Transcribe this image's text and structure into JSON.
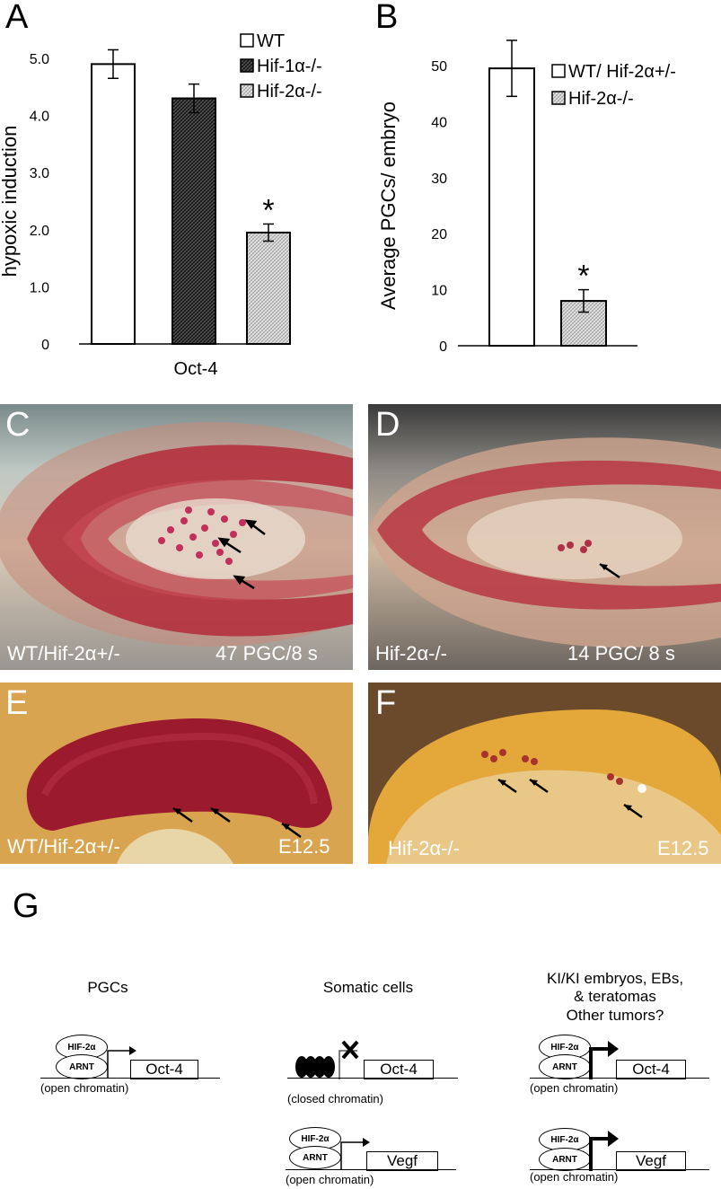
{
  "panels": {
    "A": "A",
    "B": "B",
    "C": "C",
    "D": "D",
    "E": "E",
    "F": "F",
    "G": "G"
  },
  "chart_data": [
    {
      "panel": "A",
      "type": "bar",
      "categories": [
        "WT",
        "Hif-1α-/-",
        "Hif-2α-/-"
      ],
      "values": [
        4.9,
        4.3,
        1.95
      ],
      "errors": [
        0.25,
        0.25,
        0.15
      ],
      "xlabel": "Oct-4",
      "ylabel": "hypoxic induction",
      "ylim": [
        0,
        5.0
      ],
      "yticks": [
        "0",
        "1.0",
        "2.0",
        "3.0",
        "4.0",
        "5.0"
      ],
      "legend": [
        "WT",
        "Hif-1α-/-",
        "Hif-2α-/-"
      ],
      "significance": [
        "",
        "",
        "*"
      ]
    },
    {
      "panel": "B",
      "type": "bar",
      "categories": [
        "WT/ Hif-2α+/-",
        "Hif-2α-/-"
      ],
      "values": [
        49.5,
        8
      ],
      "errors": [
        5,
        2
      ],
      "xlabel": "",
      "ylabel": "Average PGCs/ embryo",
      "ylim": [
        0,
        50
      ],
      "yticks": [
        "0",
        "10",
        "20",
        "30",
        "40",
        "50"
      ],
      "legend": [
        "WT/ Hif-2α+/-",
        "Hif-2α-/-"
      ],
      "significance": [
        "",
        "*"
      ]
    }
  ],
  "photos": {
    "C": {
      "left_label": "WT/Hif-2α+/-",
      "right_label": "47 PGC/8 s"
    },
    "D": {
      "left_label": "Hif-2α-/-",
      "right_label": "14 PGC/ 8 s"
    },
    "E": {
      "left_label": "WT/Hif-2α+/-",
      "right_label": "E12.5"
    },
    "F": {
      "left_label": "Hif-2α-/-",
      "right_label": "E12.5"
    }
  },
  "diagram": {
    "col1_title": "PGCs",
    "col2_title": "Somatic cells",
    "col3_title": "KI/KI embryos, EBs,\n& teratomas\nOther tumors?",
    "hif": "HIF-2α",
    "arnt": "ARNT",
    "oct4": "Oct-4",
    "vegf": "Vegf",
    "open": "(open chromatin)",
    "closed": "(closed chromatin)"
  },
  "colors": {
    "bar_wt": "#ffffff",
    "bar_hif1": "#3a3a3a",
    "bar_hif2": "#d6d6d6",
    "photo_red": "#b3203a",
    "embryo_yellow": "#e8b24a"
  }
}
